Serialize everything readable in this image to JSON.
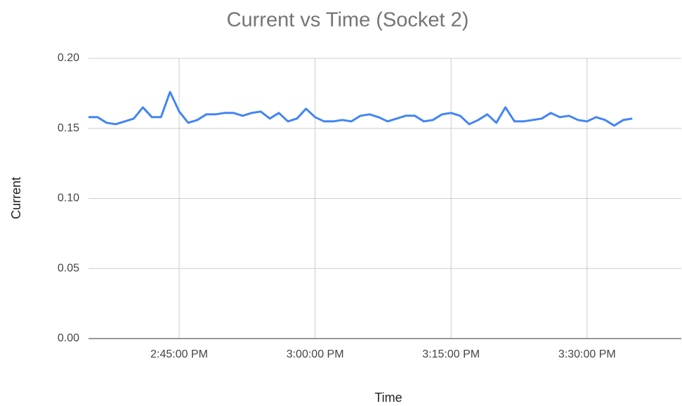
{
  "chart_data": {
    "type": "line",
    "title": "Current vs Time (Socket 2)",
    "x_label": "Time",
    "y_label": "Current",
    "x": [
      "2:35:00 PM",
      "2:36:00 PM",
      "2:37:00 PM",
      "2:38:00 PM",
      "2:39:00 PM",
      "2:40:00 PM",
      "2:41:00 PM",
      "2:42:00 PM",
      "2:43:00 PM",
      "2:44:00 PM",
      "2:45:00 PM",
      "2:46:00 PM",
      "2:47:00 PM",
      "2:48:00 PM",
      "2:49:00 PM",
      "2:50:00 PM",
      "2:51:00 PM",
      "2:52:00 PM",
      "2:53:00 PM",
      "2:54:00 PM",
      "2:55:00 PM",
      "2:56:00 PM",
      "2:57:00 PM",
      "2:58:00 PM",
      "2:59:00 PM",
      "3:00:00 PM",
      "3:01:00 PM",
      "3:02:00 PM",
      "3:03:00 PM",
      "3:04:00 PM",
      "3:05:00 PM",
      "3:06:00 PM",
      "3:07:00 PM",
      "3:08:00 PM",
      "3:09:00 PM",
      "3:10:00 PM",
      "3:11:00 PM",
      "3:12:00 PM",
      "3:13:00 PM",
      "3:14:00 PM",
      "3:15:00 PM",
      "3:16:00 PM",
      "3:17:00 PM",
      "3:18:00 PM",
      "3:19:00 PM",
      "3:20:00 PM",
      "3:21:00 PM",
      "3:22:00 PM",
      "3:23:00 PM",
      "3:24:00 PM",
      "3:25:00 PM",
      "3:26:00 PM",
      "3:27:00 PM",
      "3:28:00 PM",
      "3:29:00 PM",
      "3:30:00 PM",
      "3:31:00 PM",
      "3:32:00 PM",
      "3:33:00 PM",
      "3:34:00 PM",
      "3:35:00 PM"
    ],
    "series": [
      {
        "name": "Current",
        "color": "#4285f4",
        "values": [
          0.158,
          0.158,
          0.154,
          0.153,
          0.155,
          0.157,
          0.165,
          0.158,
          0.158,
          0.176,
          0.162,
          0.154,
          0.156,
          0.16,
          0.16,
          0.161,
          0.161,
          0.159,
          0.161,
          0.162,
          0.157,
          0.161,
          0.155,
          0.157,
          0.164,
          0.158,
          0.155,
          0.155,
          0.156,
          0.155,
          0.159,
          0.16,
          0.158,
          0.155,
          0.157,
          0.159,
          0.159,
          0.155,
          0.156,
          0.16,
          0.161,
          0.159,
          0.153,
          0.156,
          0.16,
          0.154,
          0.165,
          0.155,
          0.155,
          0.156,
          0.157,
          0.161,
          0.158,
          0.159,
          0.156,
          0.155,
          0.158,
          0.156,
          0.152,
          0.156,
          0.157
        ]
      }
    ],
    "xlim": [
      "2:35:00 PM",
      "3:40:24 PM"
    ],
    "xticks": [
      "2:45:00 PM",
      "3:00:00 PM",
      "3:15:00 PM",
      "3:30:00 PM"
    ],
    "ylim": [
      0,
      0.2
    ],
    "yticks": [
      {
        "value": 0,
        "label": "0.00"
      },
      {
        "value": 0.05,
        "label": "0.05"
      },
      {
        "value": 0.1,
        "label": "0.10"
      },
      {
        "value": 0.15,
        "label": "0.15"
      },
      {
        "value": 0.2,
        "label": "0.20"
      }
    ],
    "grid": true
  }
}
